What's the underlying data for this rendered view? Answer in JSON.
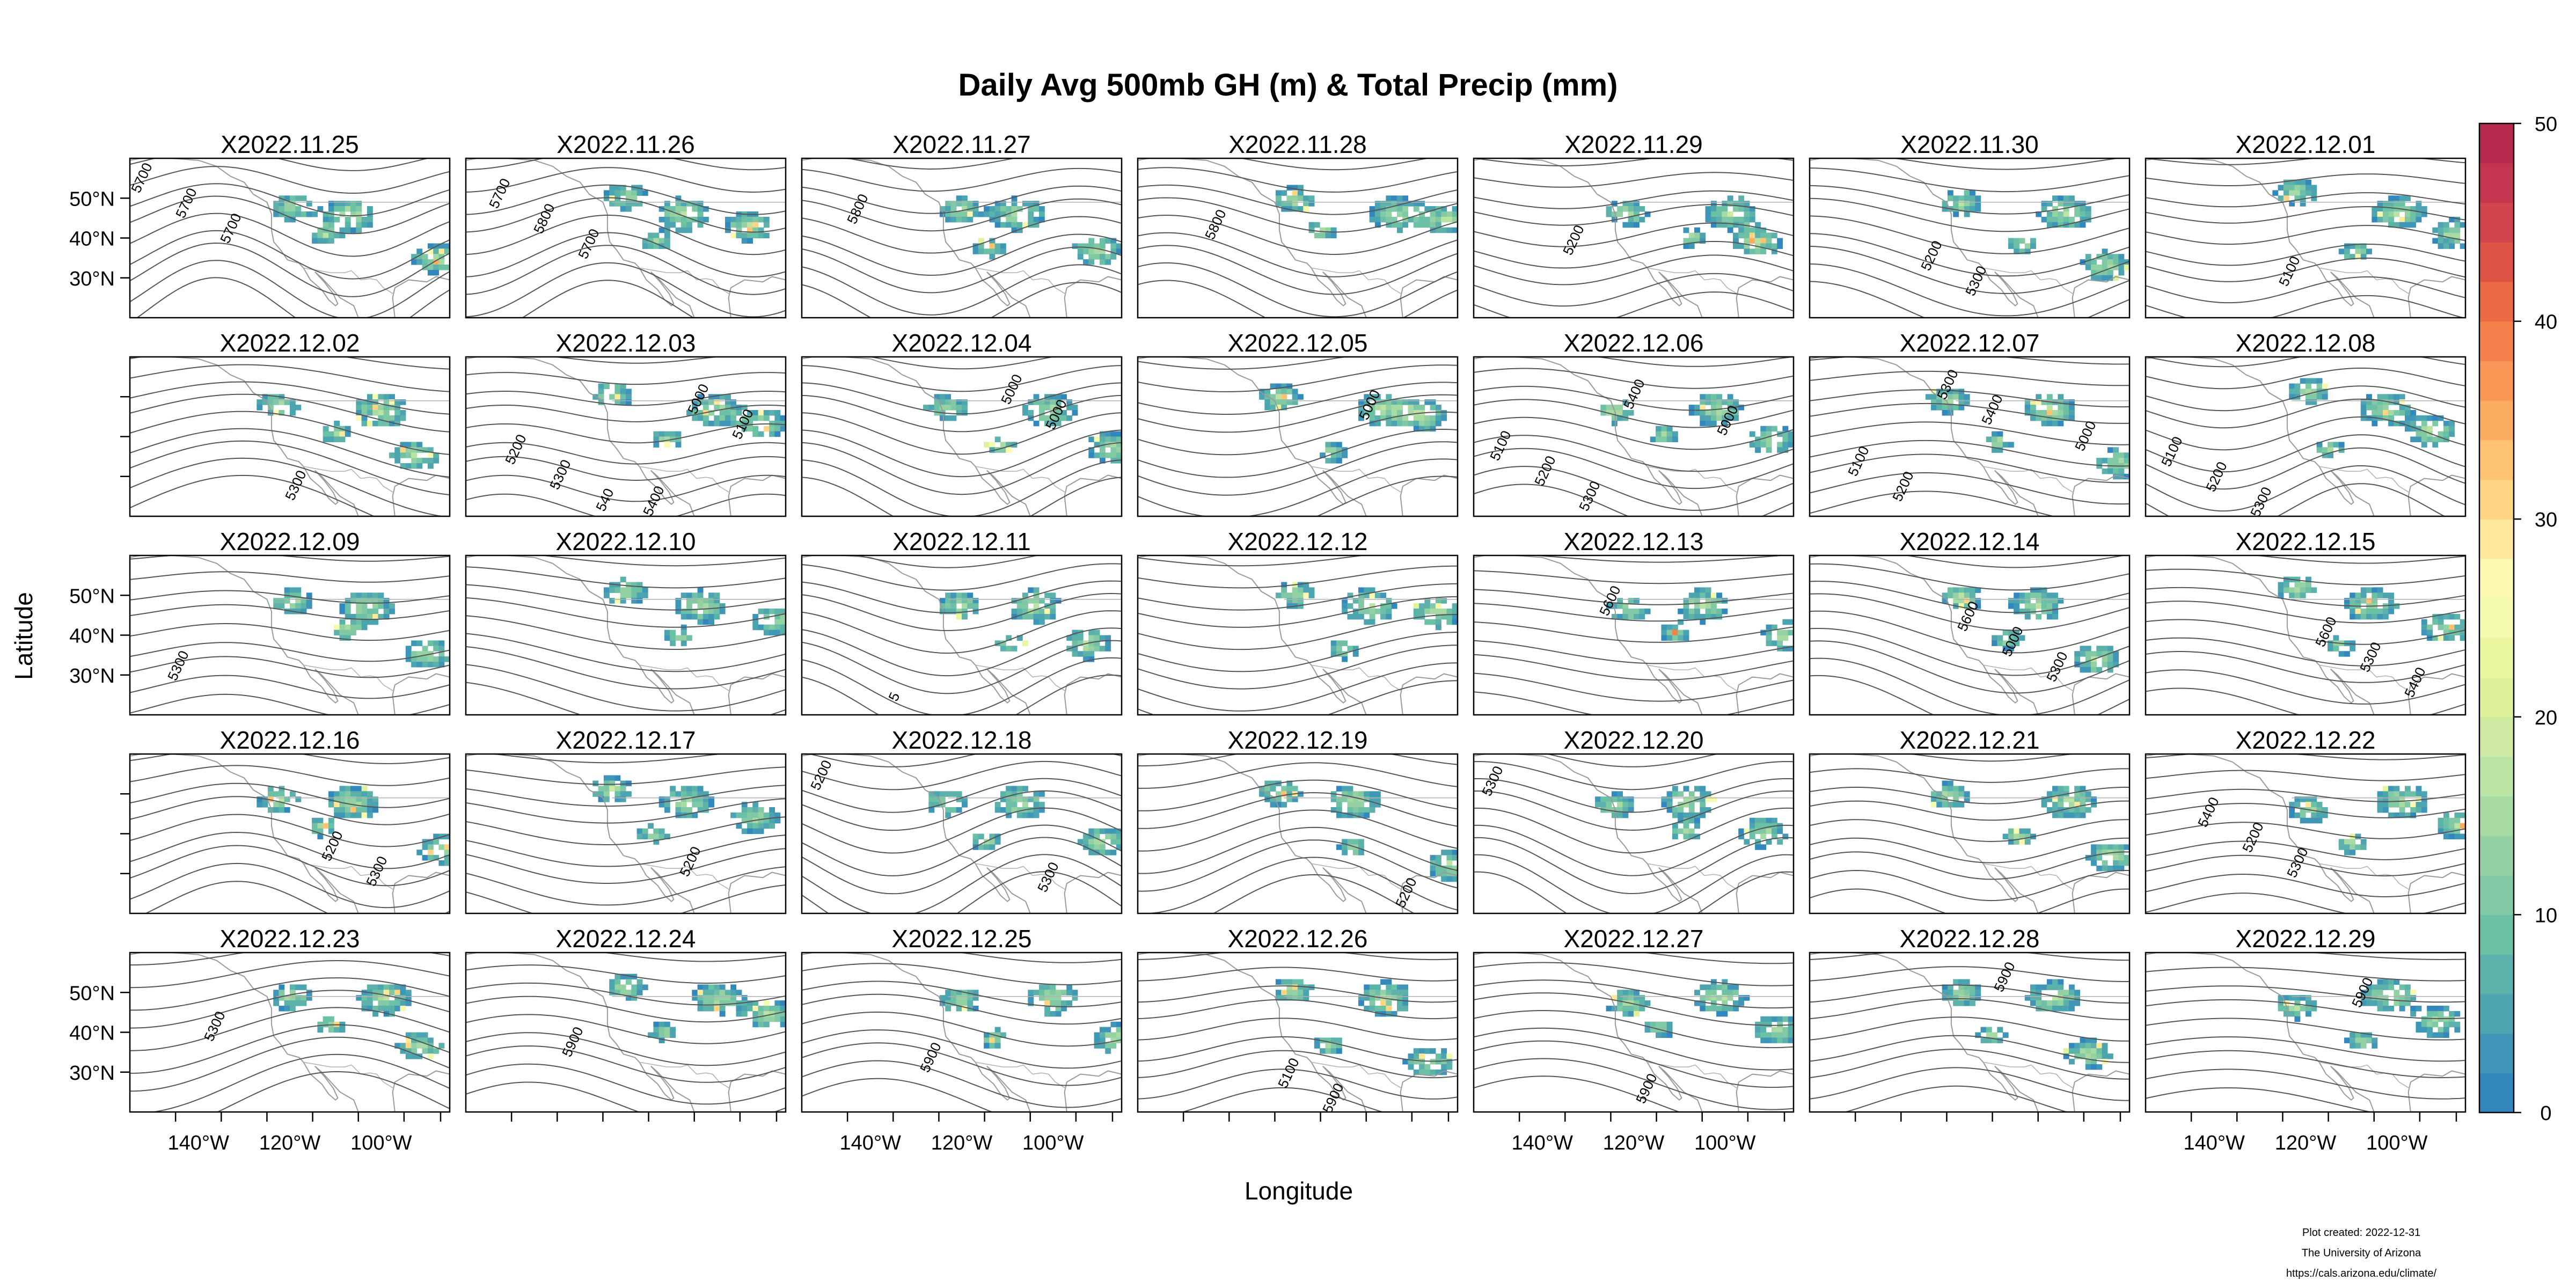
{
  "chart_data": {
    "type": "heatmap",
    "title": "Daily Avg 500mb GH (m) & Total Precip (mm)",
    "xlabel": "Longitude",
    "ylabel": "Latitude",
    "panel_titles": [
      "X2022.11.25",
      "X2022.11.26",
      "X2022.11.27",
      "X2022.11.28",
      "X2022.11.29",
      "X2022.11.30",
      "X2022.12.01",
      "X2022.12.02",
      "X2022.12.03",
      "X2022.12.04",
      "X2022.12.05",
      "X2022.12.06",
      "X2022.12.07",
      "X2022.12.08",
      "X2022.12.09",
      "X2022.12.10",
      "X2022.12.11",
      "X2022.12.12",
      "X2022.12.13",
      "X2022.12.14",
      "X2022.12.15",
      "X2022.12.16",
      "X2022.12.17",
      "X2022.12.18",
      "X2022.12.19",
      "X2022.12.20",
      "X2022.12.21",
      "X2022.12.22",
      "X2022.12.23",
      "X2022.12.24",
      "X2022.12.25",
      "X2022.12.26",
      "X2022.12.27",
      "X2022.12.28",
      "X2022.12.29"
    ],
    "layout": {
      "rows": 5,
      "cols": 7
    },
    "xlim": [
      -155,
      -85
    ],
    "ylim": [
      20,
      60
    ],
    "x_ticks": [
      -140,
      -120,
      -100
    ],
    "x_tick_labels": [
      "140°W",
      "120°W",
      "100°W"
    ],
    "y_ticks": [
      30,
      40,
      50
    ],
    "y_tick_labels": [
      "30°N",
      "40°N",
      "50°N"
    ],
    "colorbar": {
      "min": 0,
      "max": 50,
      "ticks": [
        0,
        10,
        20,
        30,
        40,
        50
      ],
      "tick_labels": [
        "0",
        "10",
        "20",
        "30",
        "40",
        "50"
      ],
      "colors": [
        "#3288bd",
        "#3f96b7",
        "#4ca4b1",
        "#5cb2ab",
        "#6cc0a5",
        "#80c9a4",
        "#94d2a4",
        "#a8dba4",
        "#bbe3a4",
        "#cdeaa0",
        "#def19b",
        "#eaf69c",
        "#f4faad",
        "#fbf8b0",
        "#fee89a",
        "#fed683",
        "#fdc372",
        "#fdad60",
        "#fa9756",
        "#f4804b",
        "#ec6a44",
        "#de5547",
        "#d2444d",
        "#c43650",
        "#b5294f"
      ]
    },
    "contour_labels": [
      [
        "5700",
        "5700",
        "5700"
      ],
      [
        "5700",
        "5800",
        "5700"
      ],
      [
        "5800"
      ],
      [
        "5800"
      ],
      [
        "5200"
      ],
      [
        "5200",
        "5300"
      ],
      [
        "5100"
      ],
      [
        "5300"
      ],
      [
        "5400",
        "5000",
        "5100",
        "5200",
        "5300",
        "540"
      ],
      [
        "5000",
        "5000"
      ],
      [
        "5000"
      ],
      [
        "5000",
        "5100",
        "5200",
        "5300",
        "5400"
      ],
      [
        "5000",
        "5100",
        "5200",
        "5300",
        "5400"
      ],
      [
        "5100",
        "5200",
        "5300"
      ],
      [
        "5300"
      ],
      [],
      [
        "5"
      ],
      [],
      [
        "5600"
      ],
      [
        "5600",
        "5000",
        "5300"
      ],
      [
        "5600",
        "5300",
        "5400"
      ],
      [
        "5200",
        "5300"
      ],
      [
        "5200"
      ],
      [
        "5300",
        "5200"
      ],
      [
        "5200"
      ],
      [
        "5300"
      ],
      [],
      [
        "5400",
        "5200",
        "5300"
      ],
      [
        "5300"
      ],
      [
        "5900"
      ],
      [
        "5900"
      ],
      [
        "5100",
        "5900"
      ],
      [
        "5900"
      ],
      [
        "5900"
      ],
      [
        "5900"
      ]
    ]
  },
  "footer": {
    "created": "Plot created: 2022-12-31",
    "org": "The University of Arizona",
    "url": "https://cals.arizona.edu/climate/"
  }
}
